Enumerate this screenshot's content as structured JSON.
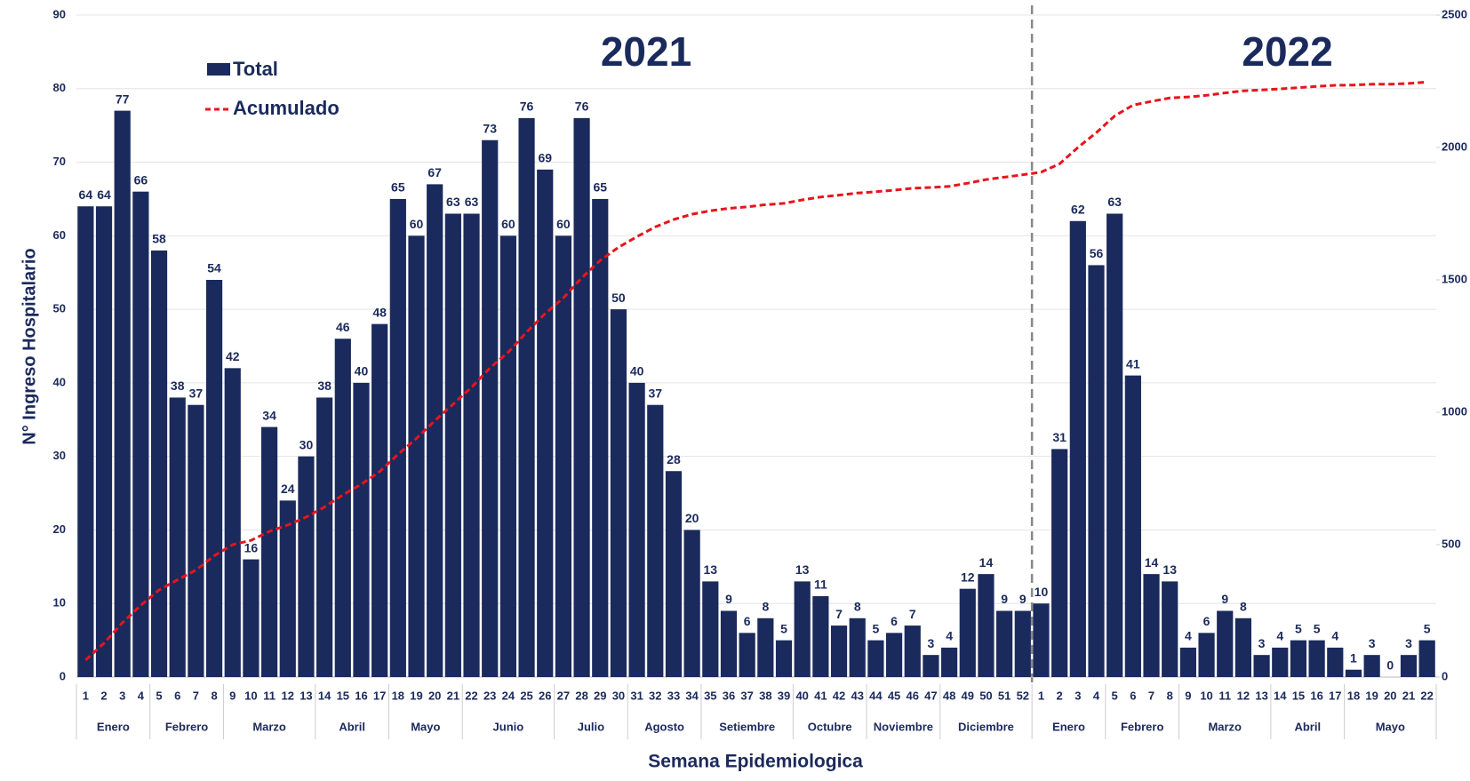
{
  "chart_data": {
    "type": "bar",
    "y_label": "N° Ingreso Hospitalario",
    "x_label": "Semana Epidemiologica",
    "year_labels": [
      "2021",
      "2022"
    ],
    "categories": [
      "1",
      "2",
      "3",
      "4",
      "5",
      "6",
      "7",
      "8",
      "9",
      "10",
      "11",
      "12",
      "13",
      "14",
      "15",
      "16",
      "17",
      "18",
      "19",
      "20",
      "21",
      "22",
      "23",
      "24",
      "25",
      "26",
      "27",
      "28",
      "29",
      "30",
      "31",
      "32",
      "33",
      "34",
      "35",
      "36",
      "37",
      "38",
      "39",
      "40",
      "41",
      "42",
      "43",
      "44",
      "45",
      "46",
      "47",
      "48",
      "49",
      "50",
      "51",
      "52",
      "1",
      "2",
      "3",
      "4",
      "5",
      "6",
      "7",
      "8",
      "9",
      "10",
      "11",
      "12",
      "13",
      "14",
      "15",
      "16",
      "17",
      "18",
      "19",
      "20",
      "21",
      "22"
    ],
    "months": [
      "Enero",
      "Enero",
      "Enero",
      "Enero",
      "Febrero",
      "Febrero",
      "Febrero",
      "Febrero",
      "Marzo",
      "Marzo",
      "Marzo",
      "Marzo",
      "Marzo",
      "Abril",
      "Abril",
      "Abril",
      "Abril",
      "Mayo",
      "Mayo",
      "Mayo",
      "Mayo",
      "Junio",
      "Junio",
      "Junio",
      "Junio",
      "Junio",
      "Julio",
      "Julio",
      "Julio",
      "Julio",
      "Agosto",
      "Agosto",
      "Agosto",
      "Agosto",
      "Setiembre",
      "Setiembre",
      "Setiembre",
      "Setiembre",
      "Setiembre",
      "Octubre",
      "Octubre",
      "Octubre",
      "Octubre",
      "Noviembre",
      "Noviembre",
      "Noviembre",
      "Noviembre",
      "Diciembre",
      "Diciembre",
      "Diciembre",
      "Diciembre",
      "Diciembre",
      "Enero",
      "Enero",
      "Enero",
      "Enero",
      "Febrero",
      "Febrero",
      "Febrero",
      "Febrero",
      "Marzo",
      "Marzo",
      "Marzo",
      "Marzo",
      "Marzo",
      "Abril",
      "Abril",
      "Abril",
      "Abril",
      "Mayo",
      "Mayo",
      "Mayo",
      "Mayo",
      "Mayo"
    ],
    "series": [
      {
        "name": "Total",
        "color": "#1b2a5c",
        "values": [
          64,
          64,
          77,
          66,
          58,
          38,
          37,
          54,
          42,
          16,
          34,
          24,
          30,
          38,
          46,
          40,
          48,
          65,
          60,
          67,
          63,
          63,
          73,
          60,
          76,
          69,
          60,
          76,
          65,
          50,
          40,
          37,
          28,
          20,
          13,
          9,
          6,
          8,
          5,
          13,
          11,
          7,
          8,
          5,
          6,
          7,
          3,
          4,
          12,
          14,
          9,
          9,
          10,
          31,
          62,
          56,
          63,
          41,
          14,
          13,
          4,
          6,
          9,
          8,
          3,
          4,
          5,
          5,
          4,
          1,
          3,
          0,
          3,
          5
        ]
      },
      {
        "name": "Acumulado",
        "color": "#e8141b",
        "axis": "y2",
        "values": [
          64,
          128,
          205,
          271,
          329,
          367,
          404,
          458,
          500,
          516,
          550,
          574,
          604,
          642,
          688,
          728,
          776,
          841,
          901,
          968,
          1031,
          1094,
          1167,
          1227,
          1303,
          1372,
          1432,
          1508,
          1573,
          1623,
          1663,
          1700,
          1728,
          1748,
          1761,
          1770,
          1776,
          1784,
          1789,
          1802,
          1813,
          1820,
          1828,
          1833,
          1839,
          1846,
          1849,
          1853,
          1865,
          1879,
          1888,
          1897,
          1907,
          1938,
          2000,
          2056,
          2119,
          2160,
          2174,
          2187,
          2191,
          2197,
          2206,
          2214,
          2217,
          2221,
          2226,
          2231,
          2235,
          2236,
          2239,
          2239,
          2242,
          2247
        ]
      }
    ],
    "ylim": [
      0,
      90
    ],
    "yticks": [
      0,
      10,
      20,
      30,
      40,
      50,
      60,
      70,
      80,
      90
    ],
    "y2lim": [
      0,
      2500
    ],
    "y2ticks": [
      0,
      500,
      1000,
      1500,
      2000,
      2500
    ],
    "grid": true
  }
}
